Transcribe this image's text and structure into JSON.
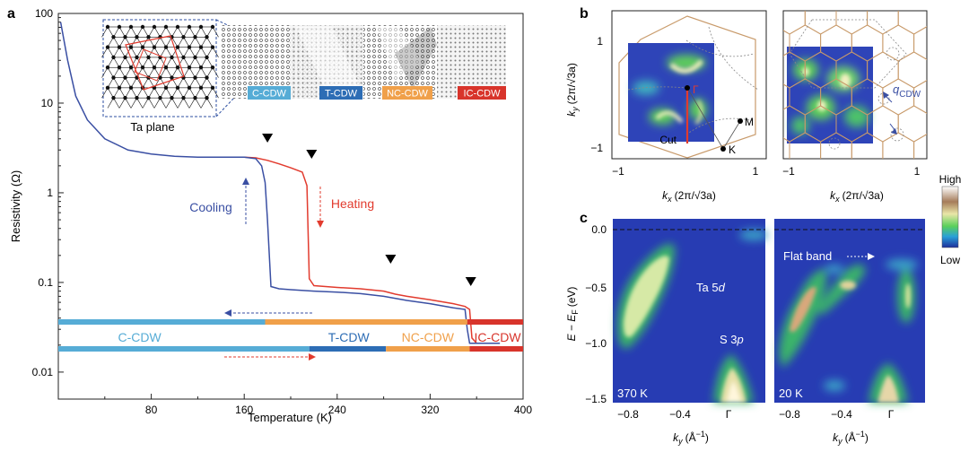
{
  "panel_a": {
    "letter": "a",
    "ylabel": "Resistivity (Ω)",
    "xlabel": "Temperature (K)",
    "inset_label": "Ta plane",
    "phase_boxes": [
      "C-CDW",
      "T-CDW",
      "NC-CDW",
      "IC-CDW"
    ],
    "curve_labels": {
      "cooling": "Cooling",
      "heating": "Heating"
    },
    "bar_labels": [
      "C-CDW",
      "T-CDW",
      "NC-CDW",
      "IC-CDW"
    ],
    "colors": {
      "cooling": "#3a4fa3",
      "heating": "#e23b2e",
      "c_cdw": "#56acd6",
      "t_cdw": "#2d6db5",
      "nc_cdw": "#f0a04a",
      "ic_cdw": "#d8342b"
    }
  },
  "chart_data": {
    "type": "line",
    "xlabel": "Temperature (K)",
    "ylabel": "Resistivity (Ω)",
    "xlim": [
      0,
      400
    ],
    "ylim": [
      0.005,
      100
    ],
    "y_scale": "log",
    "x_ticks": [
      "80",
      "160",
      "240",
      "320",
      "400"
    ],
    "y_ticks": [
      "0.01",
      "0.1",
      "1",
      "10",
      "100"
    ],
    "series": [
      {
        "name": "Cooling",
        "x": [
          2,
          8,
          15,
          25,
          40,
          60,
          80,
          100,
          120,
          140,
          160,
          170,
          175,
          178,
          180,
          183,
          190,
          200,
          220,
          240,
          260,
          280,
          300,
          320,
          340,
          350,
          352,
          354,
          360,
          380
        ],
        "y": [
          80,
          30,
          12,
          6.5,
          4,
          3,
          2.7,
          2.55,
          2.5,
          2.5,
          2.5,
          2.4,
          2.0,
          1.3,
          0.5,
          0.09,
          0.085,
          0.083,
          0.08,
          0.078,
          0.075,
          0.07,
          0.063,
          0.058,
          0.052,
          0.05,
          0.03,
          0.021,
          0.021,
          0.021
        ]
      },
      {
        "name": "Heating",
        "x": [
          160,
          170,
          180,
          190,
          200,
          210,
          214,
          216,
          220,
          230,
          240,
          260,
          280,
          290,
          300,
          320,
          340,
          350,
          354,
          356,
          360,
          380
        ],
        "y": [
          2.5,
          2.45,
          2.3,
          2.1,
          1.9,
          1.7,
          1.2,
          0.11,
          0.092,
          0.09,
          0.088,
          0.085,
          0.08,
          0.074,
          0.07,
          0.064,
          0.058,
          0.054,
          0.05,
          0.024,
          0.021,
          0.021
        ]
      }
    ],
    "markers_T": [
      180,
      218,
      286,
      355
    ],
    "phase_bars": {
      "cooling": [
        {
          "label": "C-CDW",
          "from": 0,
          "to": 178
        },
        {
          "label": "NC-CDW",
          "from": 178,
          "to": 352
        },
        {
          "label": "IC-CDW",
          "from": 352,
          "to": 400
        }
      ],
      "heating": [
        {
          "label": "C-CDW",
          "from": 0,
          "to": 216
        },
        {
          "label": "T-CDW",
          "from": 216,
          "to": 282
        },
        {
          "label": "NC-CDW",
          "from": 282,
          "to": 354
        },
        {
          "label": "IC-CDW",
          "from": 354,
          "to": 400
        }
      ]
    }
  },
  "panel_b": {
    "letter": "b",
    "ylabel": "k",
    "ylabel_sub": "y",
    "ylabel_unit": "(2π/√3a)",
    "xlabel": "k",
    "xlabel_sub": "x",
    "xlabel_unit": "(2π/√3a)",
    "ticks": {
      "pos": "1",
      "neg": "−1"
    },
    "points": {
      "gamma": "Γ",
      "m": "M",
      "k": "K"
    },
    "cut_label": "Cut",
    "q_label": "q",
    "q_sub": "CDW",
    "colorbar": {
      "high": "High",
      "low": "Low"
    }
  },
  "panel_c": {
    "letter": "c",
    "ylabel": "E − E",
    "ylabel_sub": "F",
    "ylabel_unit": "(eV)",
    "y_ticks": [
      "0.0",
      "−0.5",
      "−1.0",
      "−1.5"
    ],
    "x_ticks": [
      "−0.8",
      "−0.4",
      "Γ"
    ],
    "xlabel": "k",
    "xlabel_sub": "y",
    "xlabel_unit": "(Å",
    "xlabel_exp": "−1",
    "left_temp": "370 K",
    "right_temp": "20 K",
    "ta5d": "Ta 5",
    "ta5d_it": "d",
    "s3p": "S 3",
    "s3p_it": "p",
    "flat_band": "Flat band"
  }
}
